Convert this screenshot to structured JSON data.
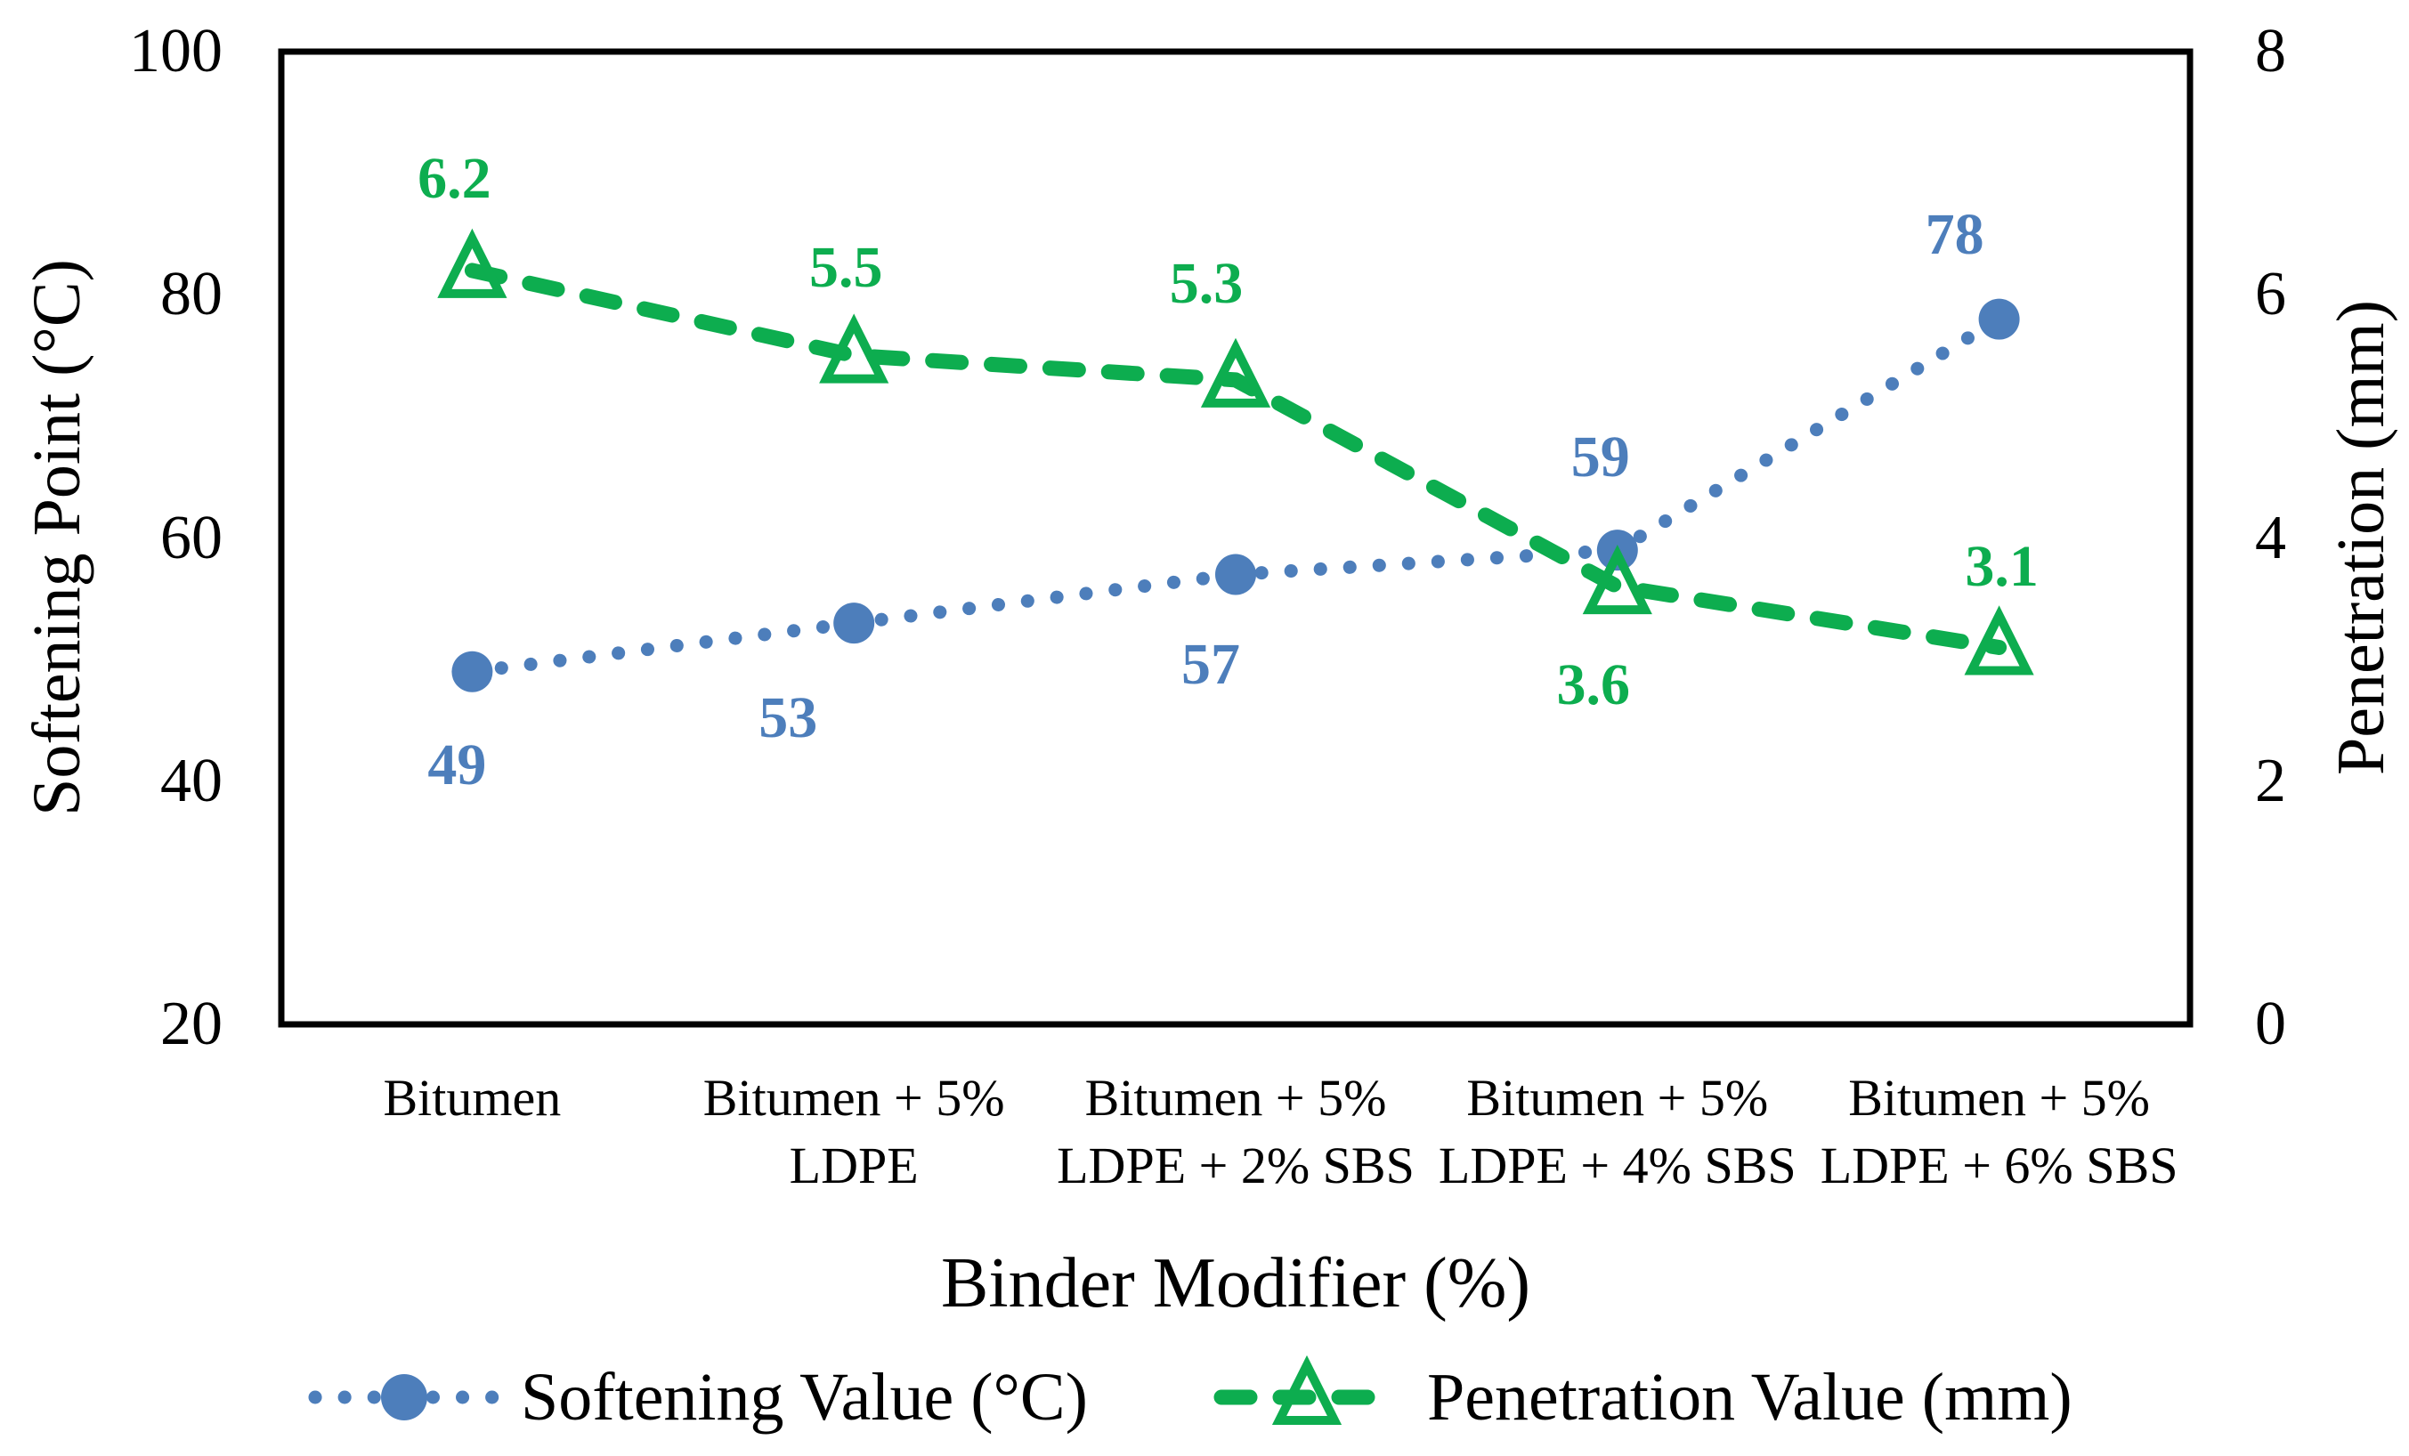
{
  "figure": {
    "background_color": "#ffffff",
    "axis_color": "#000000",
    "series_colors": {
      "softening": "#4D7EBB",
      "penetration": "#0DAD4F"
    },
    "x_axis_title": "Binder Modifier (%)",
    "y_left_title": "Softening Point (°C)",
    "y_right_title": "Penetration (mm)",
    "legend": [
      {
        "label": "Softening Value (°C)",
        "marker": "dotted-line-with-filled-circle",
        "color": "#4D7EBB"
      },
      {
        "label": "Penetration Value (mm)",
        "marker": "dashed-line-with-open-triangle",
        "color": "#0DAD4F"
      }
    ]
  },
  "chart_data": {
    "type": "line",
    "categories": [
      "Bitumen",
      "Bitumen + 5% LDPE",
      "Bitumen + 5% LDPE + 2% SBS",
      "Bitumen + 5% LDPE + 4% SBS",
      "Bitumen + 5% LDPE + 6% SBS"
    ],
    "categories_display": [
      [
        "Bitumen"
      ],
      [
        "Bitumen + 5%",
        "LDPE"
      ],
      [
        "Bitumen + 5%",
        "LDPE + 2% SBS"
      ],
      [
        "Bitumen + 5%",
        "LDPE + 4% SBS"
      ],
      [
        "Bitumen + 5%",
        "LDPE + 6% SBS"
      ]
    ],
    "series": [
      {
        "name": "Softening Value (°C)",
        "axis": "left",
        "values": [
          49,
          53,
          57,
          59,
          78
        ],
        "color": "#4D7EBB",
        "line_style": "dotted",
        "marker": "filled-circle",
        "label_offsets": [
          [
            -17,
            105
          ],
          [
            -74,
            107
          ],
          [
            -28,
            102
          ],
          [
            -19,
            -104
          ],
          [
            -50,
            -95
          ]
        ]
      },
      {
        "name": "Penetration Value (mm)",
        "axis": "right",
        "values": [
          6.2,
          5.5,
          5.3,
          3.6,
          3.1
        ],
        "color": "#0DAD4F",
        "line_style": "dashed",
        "marker": "open-triangle",
        "label_offsets": [
          [
            -20,
            -103
          ],
          [
            -9,
            -99
          ],
          [
            -33,
            -108
          ],
          [
            -27,
            111
          ],
          [
            3,
            -90
          ]
        ]
      }
    ],
    "xlabel": "Binder Modifier (%)",
    "ylabel_left": "Softening Point (°C)",
    "ylabel_right": "Penetration (mm)",
    "y_left_ticks": [
      100,
      80,
      60,
      40,
      20
    ],
    "y_right_ticks": [
      8,
      6,
      4,
      2,
      0
    ],
    "ylim_left": [
      20,
      100
    ],
    "ylim_right": [
      0,
      8
    ],
    "grid": false,
    "legend_position": "bottom"
  }
}
